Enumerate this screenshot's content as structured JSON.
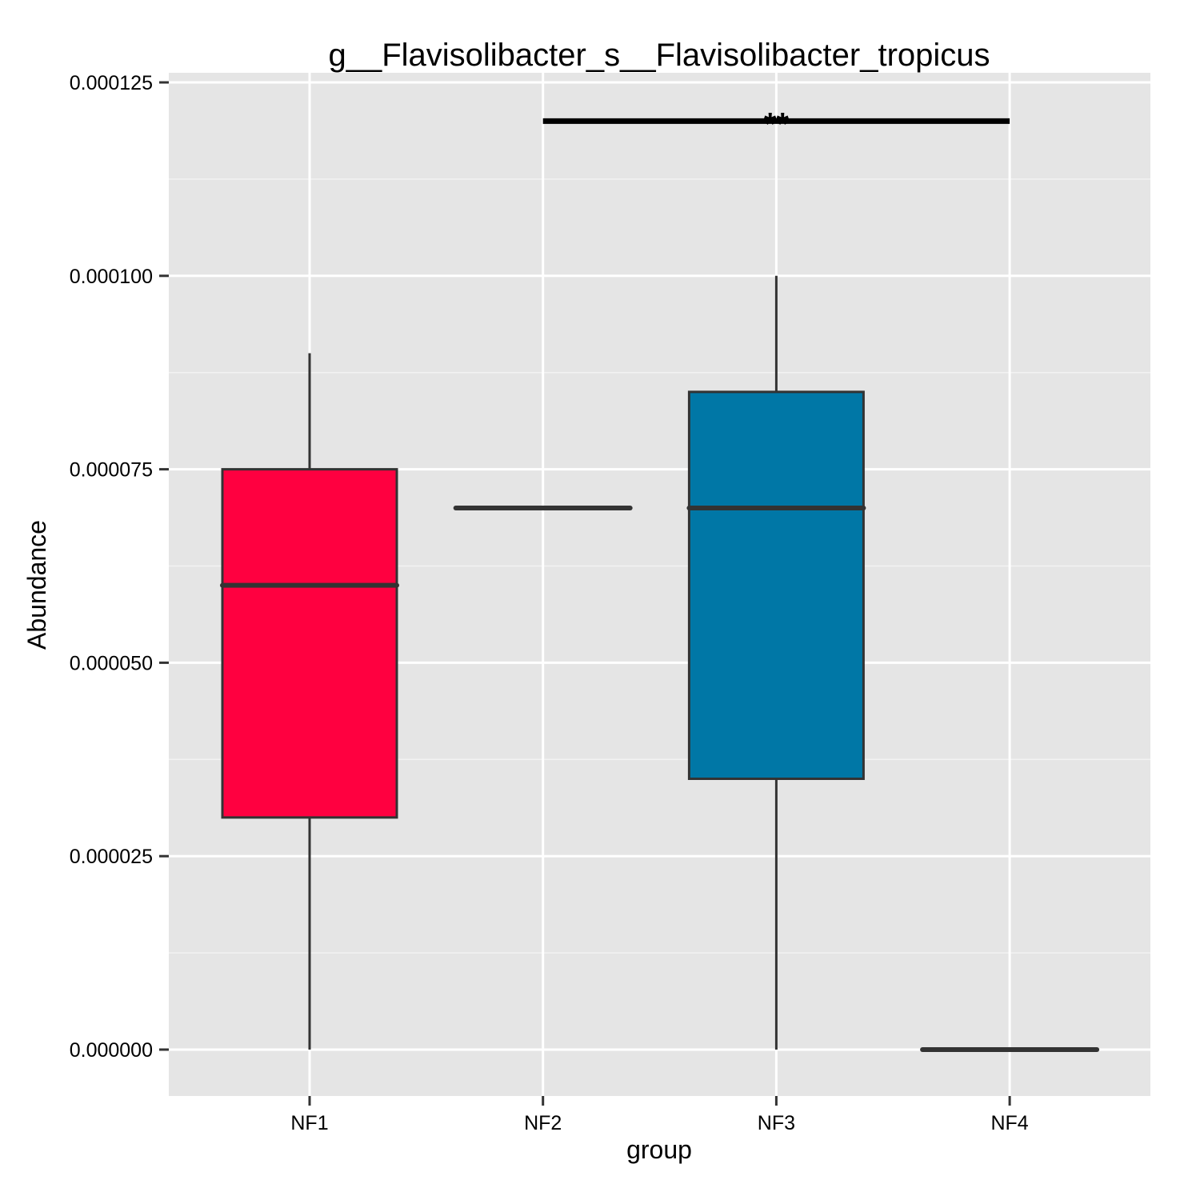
{
  "chart_data": {
    "type": "box",
    "title": "g__Flavisolibacter_s__Flavisolibacter_tropicus",
    "xlabel": "group",
    "ylabel": "Abundance",
    "categories": [
      "NF1",
      "NF2",
      "NF3",
      "NF4"
    ],
    "ylim": [
      -6e-06,
      0.000125
    ],
    "yticks": [
      0.0,
      2.5e-05,
      5e-05,
      7.5e-05,
      0.0001,
      0.000125
    ],
    "ytick_labels": [
      "0.000000",
      "0.000025",
      "0.000050",
      "0.000075",
      "0.000100",
      "0.000125"
    ],
    "grid": true,
    "panel_background": "#e5e5e5",
    "boxes": [
      {
        "group": "NF1",
        "min": 0.0,
        "q1": 3e-05,
        "median": 6e-05,
        "q3": 7.5e-05,
        "max": 9e-05,
        "color": "#ff0040"
      },
      {
        "group": "NF2",
        "min": 7e-05,
        "q1": 7e-05,
        "median": 7e-05,
        "q3": 7e-05,
        "max": 7e-05,
        "color": "#e5e5e5"
      },
      {
        "group": "NF3",
        "min": 0.0,
        "q1": 3.5e-05,
        "median": 7e-05,
        "q3": 8.5e-05,
        "max": 0.0001,
        "color": "#0077a6"
      },
      {
        "group": "NF4",
        "min": 0.0,
        "q1": 0.0,
        "median": 0.0,
        "q3": 0.0,
        "max": 0.0,
        "color": "#e5e5e5"
      }
    ],
    "significance": [
      {
        "from": "NF2",
        "to": "NF4",
        "y": 0.00012,
        "label": "**"
      }
    ]
  }
}
